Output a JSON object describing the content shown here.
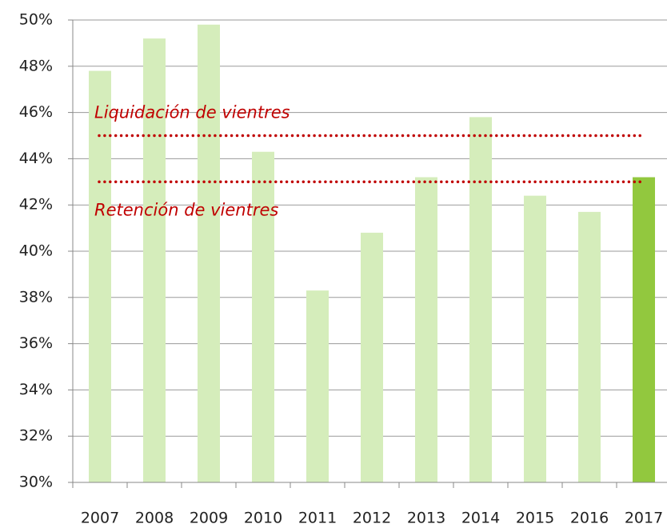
{
  "chart_data": {
    "type": "bar",
    "categories": [
      "2007",
      "2008",
      "2009",
      "2010",
      "2011",
      "2012",
      "2013",
      "2014",
      "2015",
      "2016",
      "2017"
    ],
    "values": [
      47.8,
      49.2,
      49.8,
      44.3,
      38.3,
      40.8,
      43.2,
      45.8,
      42.4,
      41.7,
      43.2
    ],
    "colors": [
      "#d5edbb",
      "#d5edbb",
      "#d5edbb",
      "#d5edbb",
      "#d5edbb",
      "#d5edbb",
      "#d5edbb",
      "#d5edbb",
      "#d5edbb",
      "#d5edbb",
      "#92c83e"
    ],
    "ylim": [
      30,
      50
    ],
    "yticks": [
      {
        "value": 30,
        "label": "30%"
      },
      {
        "value": 32,
        "label": "32%"
      },
      {
        "value": 34,
        "label": "34%"
      },
      {
        "value": 36,
        "label": "36%"
      },
      {
        "value": 38,
        "label": "38%"
      },
      {
        "value": 40,
        "label": "40%"
      },
      {
        "value": 42,
        "label": "42%"
      },
      {
        "value": 44,
        "label": "44%"
      },
      {
        "value": 46,
        "label": "46%"
      },
      {
        "value": 48,
        "label": "48%"
      },
      {
        "value": 50,
        "label": "50%"
      }
    ],
    "grid": true,
    "reference_lines": [
      {
        "label": "Liquidación de vientres",
        "value": 45,
        "color": "#c00000",
        "label_position": "above"
      },
      {
        "label": "Retención de vientres",
        "value": 43,
        "color": "#c00000",
        "label_position": "below"
      }
    ]
  }
}
